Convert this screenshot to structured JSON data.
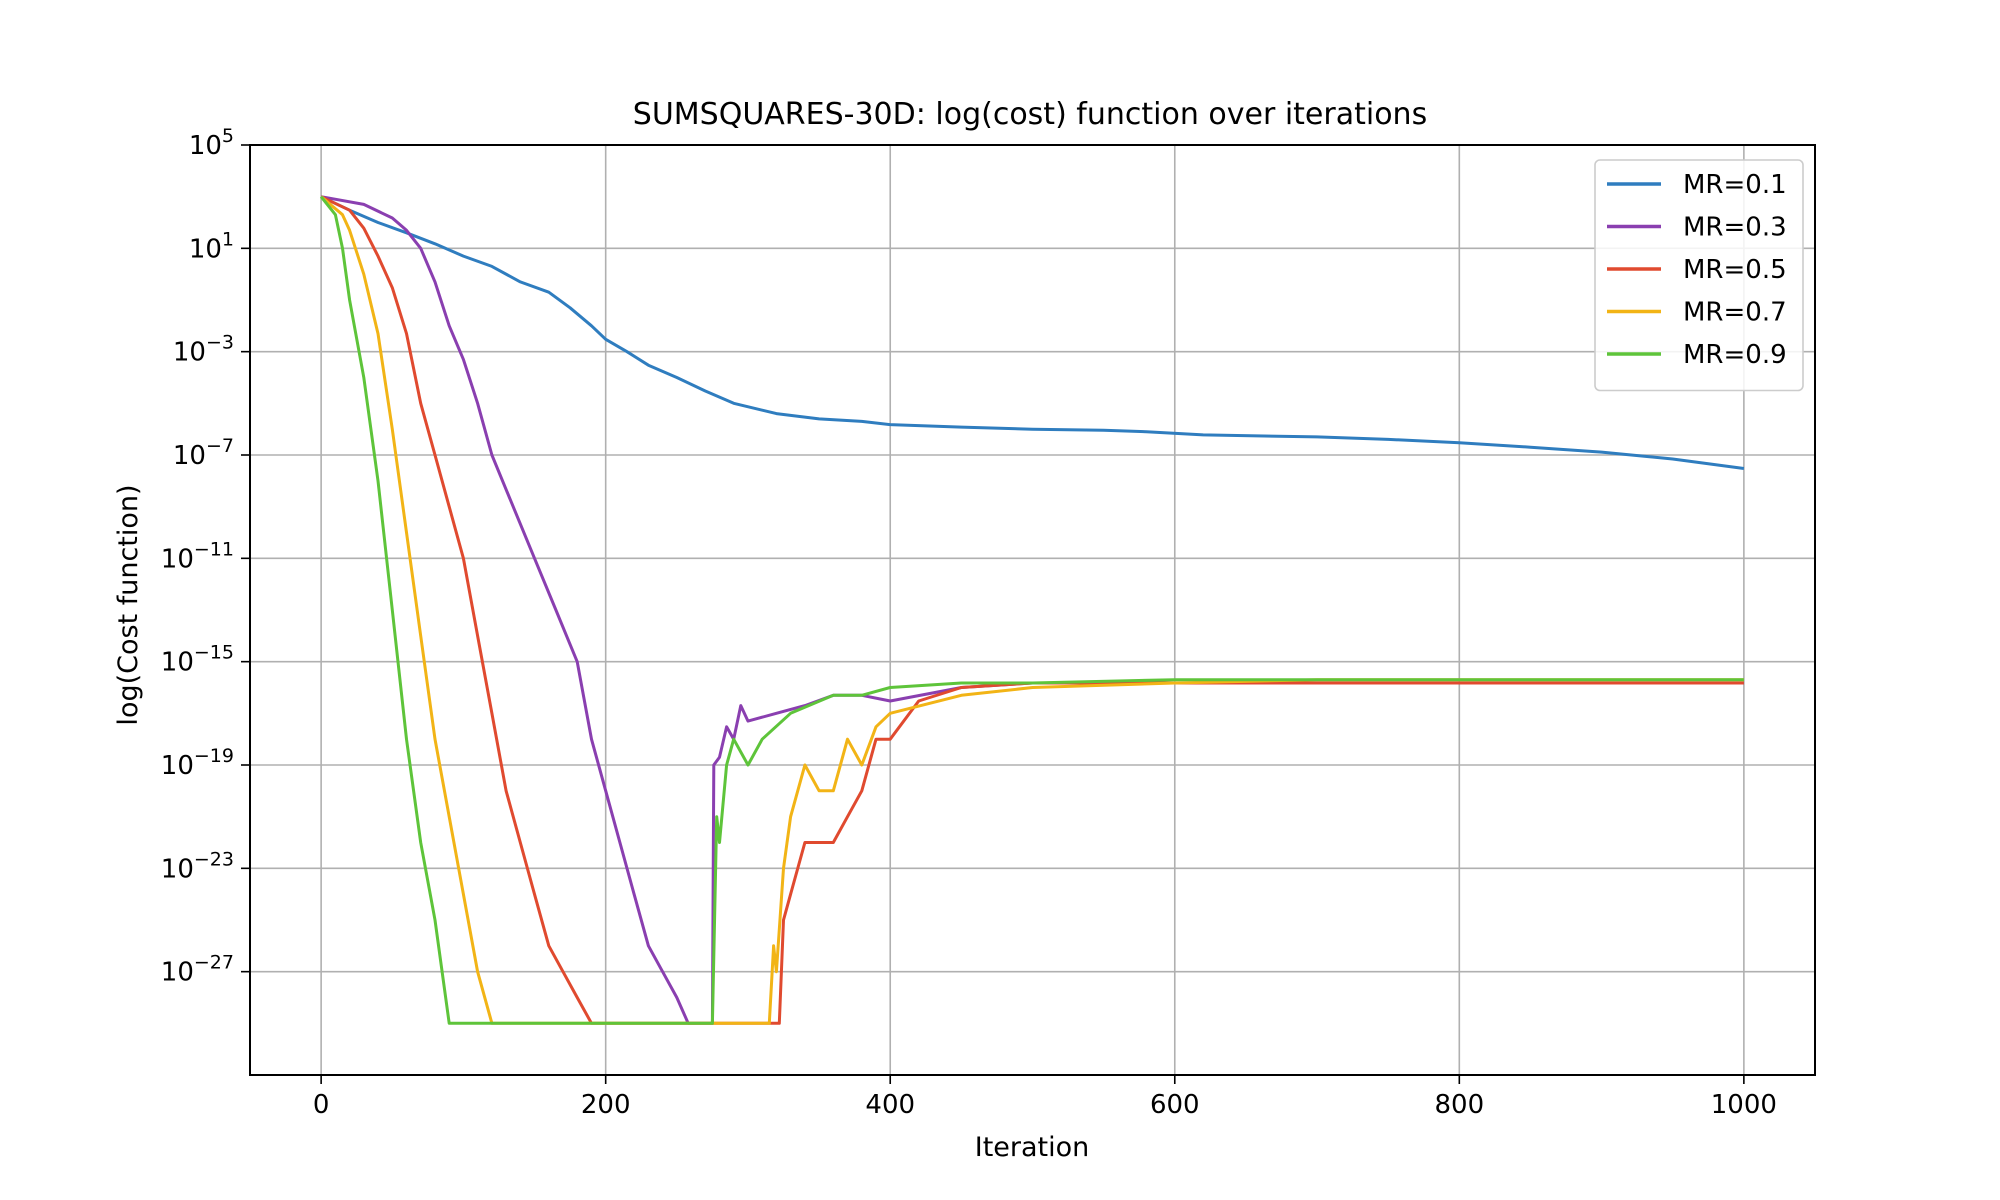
{
  "chart_data": {
    "type": "line",
    "title": "SUMSQUARES-30D: log(cost) function over iterations",
    "xlabel": "Iteration",
    "ylabel": "log(Cost function)",
    "xscale": "linear",
    "yscale": "log",
    "xlim": [
      -50,
      1050
    ],
    "ylim": [
      1e-31,
      100000.0
    ],
    "grid": true,
    "legend_position": "top-right",
    "x_ticks": [
      {
        "value": 0,
        "label": "0"
      },
      {
        "value": 200,
        "label": "200"
      },
      {
        "value": 400,
        "label": "400"
      },
      {
        "value": 600,
        "label": "600"
      },
      {
        "value": 800,
        "label": "800"
      },
      {
        "value": 1000,
        "label": "1000"
      }
    ],
    "y_ticks": [
      {
        "value": 100000.0,
        "base": "10",
        "exp": "5"
      },
      {
        "value": 10.0,
        "base": "10",
        "exp": "1"
      },
      {
        "value": 0.001,
        "base": "10",
        "exp": "−3"
      },
      {
        "value": 1e-07,
        "base": "10",
        "exp": "−7"
      },
      {
        "value": 1e-11,
        "base": "10",
        "exp": "−11"
      },
      {
        "value": 1e-15,
        "base": "10",
        "exp": "−15"
      },
      {
        "value": 1e-19,
        "base": "10",
        "exp": "−19"
      },
      {
        "value": 1e-23,
        "base": "10",
        "exp": "−23"
      },
      {
        "value": 1e-27,
        "base": "10",
        "exp": "−27"
      }
    ],
    "series": [
      {
        "name": "MR=0.1",
        "color": "#2f7dbf",
        "points": [
          [
            0,
            1000
          ],
          [
            20,
            300
          ],
          [
            40,
            100
          ],
          [
            60,
            40
          ],
          [
            80,
            15
          ],
          [
            100,
            5
          ],
          [
            120,
            2
          ],
          [
            140,
            0.5
          ],
          [
            160,
            0.2
          ],
          [
            175,
            0.05
          ],
          [
            190,
            0.01
          ],
          [
            200,
            0.003
          ],
          [
            215,
            0.001
          ],
          [
            230,
            0.0003
          ],
          [
            250,
            0.0001
          ],
          [
            270,
            3e-05
          ],
          [
            290,
            1e-05
          ],
          [
            320,
            4e-06
          ],
          [
            350,
            2.5e-06
          ],
          [
            380,
            2e-06
          ],
          [
            400,
            1.5e-06
          ],
          [
            450,
            1.2e-06
          ],
          [
            500,
            1e-06
          ],
          [
            550,
            9e-07
          ],
          [
            580,
            8e-07
          ],
          [
            620,
            6e-07
          ],
          [
            700,
            5e-07
          ],
          [
            750,
            4e-07
          ],
          [
            800,
            3e-07
          ],
          [
            850,
            2e-07
          ],
          [
            900,
            1.3e-07
          ],
          [
            950,
            7e-08
          ],
          [
            1000,
            3e-08
          ]
        ]
      },
      {
        "name": "MR=0.3",
        "color": "#8a3fb0",
        "points": [
          [
            0,
            1000
          ],
          [
            30,
            500
          ],
          [
            50,
            150
          ],
          [
            60,
            50
          ],
          [
            70,
            10
          ],
          [
            80,
            0.5
          ],
          [
            90,
            0.01
          ],
          [
            100,
            0.0005
          ],
          [
            110,
            1e-05
          ],
          [
            120,
            1e-07
          ],
          [
            135,
            1e-09
          ],
          [
            150,
            1e-11
          ],
          [
            165,
            1e-13
          ],
          [
            180,
            1e-15
          ],
          [
            190,
            1e-18
          ],
          [
            200,
            1e-20
          ],
          [
            210,
            1e-22
          ],
          [
            220,
            1e-24
          ],
          [
            230,
            1e-26
          ],
          [
            240,
            1e-27
          ],
          [
            250,
            1e-28
          ],
          [
            258,
            1e-29
          ],
          [
            263,
            1e-29
          ],
          [
            266,
            1e-29
          ],
          [
            270,
            1e-29
          ],
          [
            275,
            1e-29
          ],
          [
            276,
            1e-19
          ],
          [
            280,
            2e-19
          ],
          [
            285,
            3e-18
          ],
          [
            290,
            1e-18
          ],
          [
            295,
            2e-17
          ],
          [
            300,
            5e-18
          ],
          [
            320,
            1e-17
          ],
          [
            340,
            2e-17
          ],
          [
            360,
            5e-17
          ],
          [
            380,
            5e-17
          ],
          [
            400,
            3e-17
          ],
          [
            450,
            1e-16
          ],
          [
            500,
            1.5e-16
          ],
          [
            600,
            1.5e-16
          ],
          [
            700,
            1.5e-16
          ],
          [
            800,
            1.5e-16
          ],
          [
            1000,
            1.5e-16
          ]
        ]
      },
      {
        "name": "MR=0.5",
        "color": "#e04a2f",
        "points": [
          [
            0,
            1000
          ],
          [
            20,
            300
          ],
          [
            30,
            60
          ],
          [
            40,
            5
          ],
          [
            50,
            0.3
          ],
          [
            60,
            0.005
          ],
          [
            70,
            1e-05
          ],
          [
            80,
            1e-07
          ],
          [
            90,
            1e-09
          ],
          [
            100,
            1e-11
          ],
          [
            110,
            1e-14
          ],
          [
            120,
            1e-17
          ],
          [
            130,
            1e-20
          ],
          [
            140,
            1e-22
          ],
          [
            150,
            1e-24
          ],
          [
            160,
            1e-26
          ],
          [
            170,
            1e-27
          ],
          [
            180,
            1e-28
          ],
          [
            190,
            1e-29
          ],
          [
            200,
            1e-29
          ],
          [
            250,
            1e-29
          ],
          [
            300,
            1e-29
          ],
          [
            322,
            1e-29
          ],
          [
            325,
            1e-25
          ],
          [
            330,
            1e-24
          ],
          [
            340,
            1e-22
          ],
          [
            360,
            1e-22
          ],
          [
            370,
            1e-21
          ],
          [
            380,
            1e-20
          ],
          [
            390,
            1e-18
          ],
          [
            400,
            1e-18
          ],
          [
            420,
            3e-17
          ],
          [
            450,
            1e-16
          ],
          [
            500,
            1.5e-16
          ],
          [
            600,
            1.5e-16
          ],
          [
            800,
            1.5e-16
          ],
          [
            1000,
            1.5e-16
          ]
        ]
      },
      {
        "name": "MR=0.7",
        "color": "#f2b416",
        "points": [
          [
            0,
            1000
          ],
          [
            15,
            200
          ],
          [
            20,
            50
          ],
          [
            30,
            1
          ],
          [
            40,
            0.005
          ],
          [
            50,
            1e-06
          ],
          [
            60,
            1e-10
          ],
          [
            70,
            1e-14
          ],
          [
            80,
            1e-18
          ],
          [
            90,
            1e-21
          ],
          [
            100,
            1e-24
          ],
          [
            110,
            1e-27
          ],
          [
            120,
            1e-29
          ],
          [
            150,
            1e-29
          ],
          [
            200,
            1e-29
          ],
          [
            250,
            1e-29
          ],
          [
            300,
            1e-29
          ],
          [
            315,
            1e-29
          ],
          [
            318,
            1e-26
          ],
          [
            320,
            1e-27
          ],
          [
            325,
            1e-23
          ],
          [
            330,
            1e-21
          ],
          [
            340,
            1e-19
          ],
          [
            350,
            1e-20
          ],
          [
            360,
            1e-20
          ],
          [
            370,
            1e-18
          ],
          [
            380,
            1e-19
          ],
          [
            390,
            3e-18
          ],
          [
            400,
            1e-17
          ],
          [
            450,
            5e-17
          ],
          [
            500,
            1e-16
          ],
          [
            600,
            1.5e-16
          ],
          [
            700,
            2e-16
          ],
          [
            800,
            2e-16
          ],
          [
            1000,
            2e-16
          ]
        ]
      },
      {
        "name": "MR=0.9",
        "color": "#5ec43a",
        "points": [
          [
            0,
            1000
          ],
          [
            10,
            200
          ],
          [
            15,
            10
          ],
          [
            20,
            0.1
          ],
          [
            30,
            0.0001
          ],
          [
            40,
            1e-08
          ],
          [
            50,
            1e-13
          ],
          [
            60,
            1e-18
          ],
          [
            70,
            1e-22
          ],
          [
            80,
            1e-25
          ],
          [
            90,
            1e-29
          ],
          [
            100,
            1e-29
          ],
          [
            150,
            1e-29
          ],
          [
            200,
            1e-29
          ],
          [
            250,
            1e-29
          ],
          [
            275,
            1e-29
          ],
          [
            278,
            1e-21
          ],
          [
            280,
            1e-22
          ],
          [
            285,
            1e-19
          ],
          [
            290,
            1e-18
          ],
          [
            300,
            1e-19
          ],
          [
            310,
            1e-18
          ],
          [
            330,
            1e-17
          ],
          [
            360,
            5e-17
          ],
          [
            380,
            5e-17
          ],
          [
            400,
            1e-16
          ],
          [
            450,
            1.5e-16
          ],
          [
            500,
            1.5e-16
          ],
          [
            600,
            2e-16
          ],
          [
            800,
            2e-16
          ],
          [
            1000,
            2e-16
          ]
        ]
      }
    ]
  }
}
